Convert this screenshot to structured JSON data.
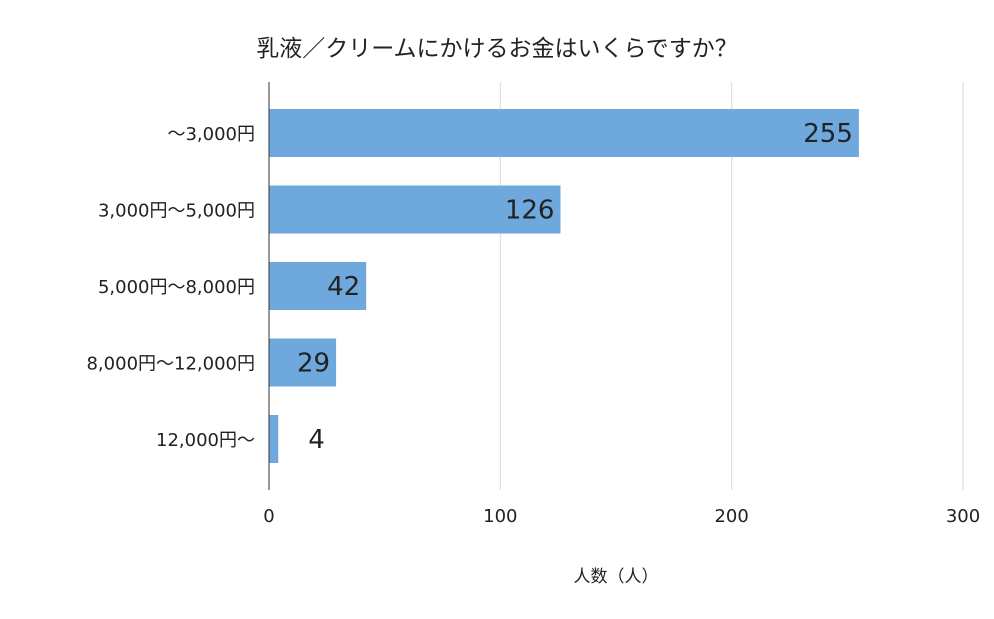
{
  "chart_data": {
    "type": "bar",
    "orientation": "horizontal",
    "title": "乳液／クリームにかけるお金はいくらですか？",
    "xlabel": "人数（人）",
    "ylabel": "",
    "categories": [
      "～3,000円",
      "3,000円～5,000円",
      "5,000円～8,000円",
      "8,000円～12,000円",
      "12,000円～"
    ],
    "values": [
      255,
      126,
      42,
      29,
      4
    ],
    "data_labels": [
      "255",
      "126",
      "42",
      "29",
      "4"
    ],
    "xlim": [
      0,
      300
    ],
    "x_ticks": [
      0,
      100,
      200,
      300
    ],
    "x_tick_labels": [
      "0",
      "100",
      "200",
      "300"
    ],
    "grid": true,
    "legend": "none",
    "bar_color": "#6fa8dc",
    "grid_color": "#d9d9d9",
    "axis_color": "#333333"
  }
}
